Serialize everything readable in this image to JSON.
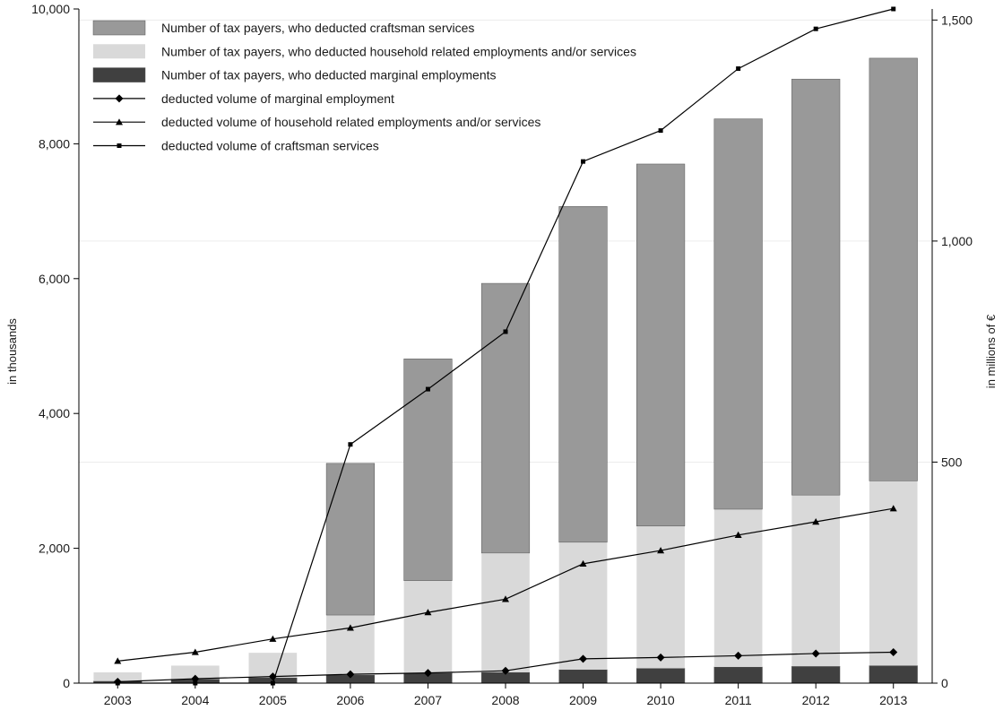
{
  "chart_data": {
    "type": "bar",
    "stacked": true,
    "categories": [
      "2003",
      "2004",
      "2005",
      "2006",
      "2007",
      "2008",
      "2009",
      "2010",
      "2011",
      "2012",
      "2013"
    ],
    "left_axis": {
      "label": "in thousands",
      "range": [
        0,
        10000
      ],
      "ticks": [
        0,
        2000,
        4000,
        6000,
        8000,
        10000
      ],
      "tick_labels": [
        "0",
        "2,000",
        "4,000",
        "6,000",
        "8,000",
        "10,000"
      ]
    },
    "right_axis": {
      "label": "in millions of €",
      "range": [
        0,
        1525
      ],
      "ticks": [
        0,
        500,
        1000,
        1500
      ],
      "tick_labels": [
        "0",
        "500",
        "1,000",
        "1,500"
      ]
    },
    "grid": true,
    "legend_position": "top-left",
    "bar_series": [
      {
        "name": "Number of tax payers, who deducted marginal employments",
        "color": "#404040",
        "values": [
          30,
          60,
          80,
          120,
          150,
          160,
          200,
          220,
          240,
          250,
          260
        ]
      },
      {
        "name": "Number of tax payers, who deducted household related employments and/or services",
        "color": "#d9d9d9",
        "values": [
          130,
          200,
          370,
          890,
          1370,
          1770,
          1890,
          2110,
          2340,
          2540,
          2740
        ]
      },
      {
        "name": "Number of tax payers, who deducted craftsman services",
        "color": "#999999",
        "values": [
          0,
          0,
          0,
          2250,
          3290,
          4000,
          4980,
          5370,
          5790,
          6170,
          6270
        ]
      }
    ],
    "line_series": [
      {
        "name": "deducted volume of marginal employment",
        "marker": "diamond",
        "values": [
          3,
          10,
          15,
          20,
          23,
          28,
          55,
          58,
          62,
          67,
          70
        ]
      },
      {
        "name": "deducted volume of household related employments and/or services",
        "marker": "triangle",
        "values": [
          50,
          70,
          100,
          125,
          160,
          190,
          270,
          300,
          335,
          365,
          395
        ]
      },
      {
        "name": "deducted volume of craftsman services",
        "marker": "square",
        "values": [
          0,
          0,
          0,
          540,
          665,
          795,
          1180,
          1250,
          1390,
          1480,
          1525
        ]
      }
    ],
    "legend_order": [
      {
        "type": "bar",
        "index": 2
      },
      {
        "type": "bar",
        "index": 1
      },
      {
        "type": "bar",
        "index": 0
      },
      {
        "type": "line",
        "index": 0
      },
      {
        "type": "line",
        "index": 1
      },
      {
        "type": "line",
        "index": 2
      }
    ]
  }
}
